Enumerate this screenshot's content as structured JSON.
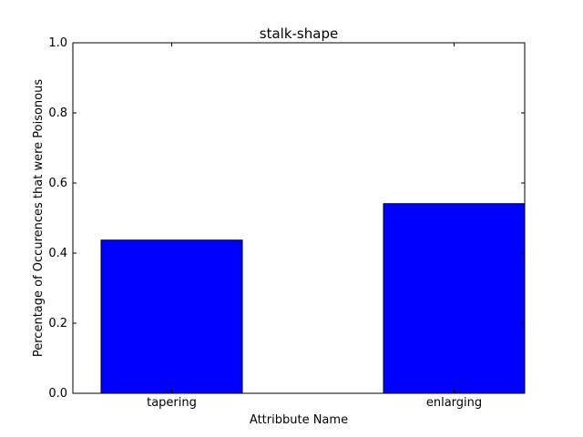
{
  "chart_data": {
    "type": "bar",
    "title": "stalk-shape",
    "xlabel": "Attribbute Name",
    "ylabel": "Percentage of Occurences that were Poisonous",
    "categories": [
      "tapering",
      "enlarging"
    ],
    "values": [
      0.437,
      0.541
    ],
    "ylim": [
      0,
      1.0
    ],
    "yticks": [
      "0.0",
      "0.2",
      "0.4",
      "0.6",
      "0.8",
      "1.0"
    ],
    "grid": false,
    "bar_color": "#0000ff",
    "edge_color": "#000000"
  }
}
